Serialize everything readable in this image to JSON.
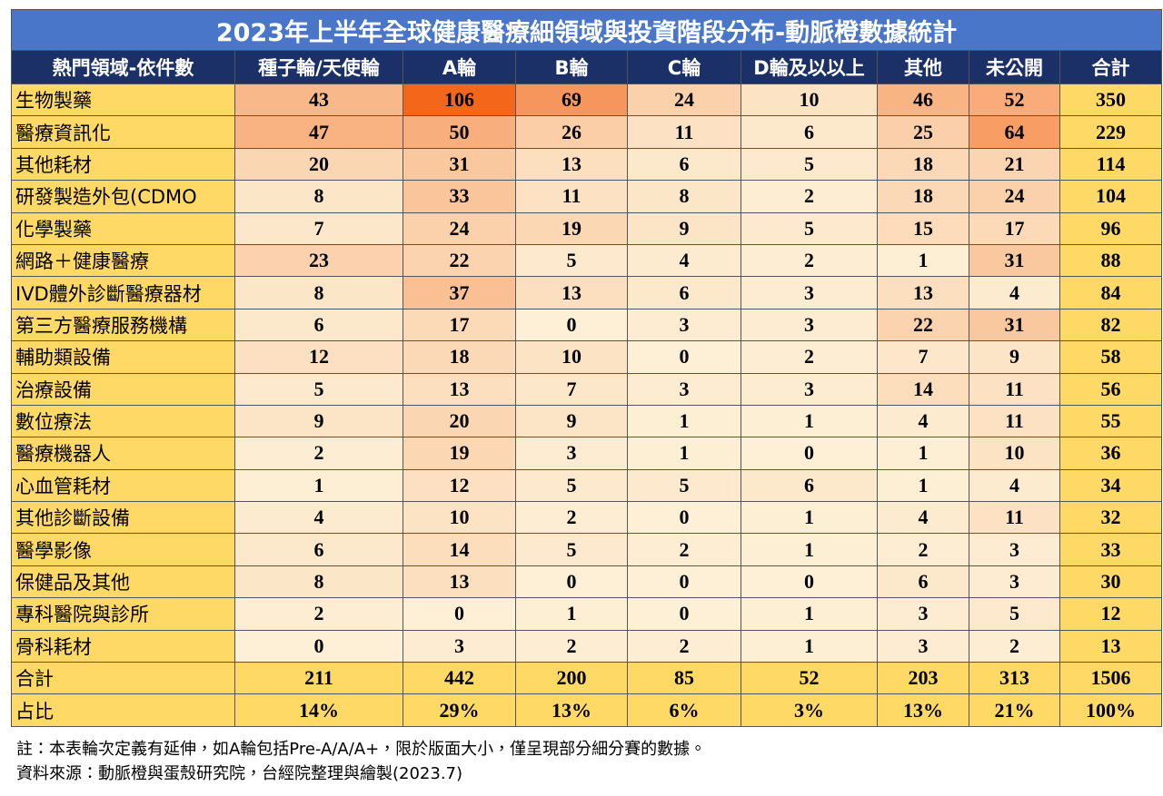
{
  "title": "2023年上半年全球健康醫療細領域與投資階段分布-動脈橙數據統計",
  "table": {
    "header": [
      "熱門領域-依件數",
      "種子輪/天使輪",
      "A輪",
      "B輪",
      "C輪",
      "D輪及以以上",
      "其他",
      "未公開",
      "合計"
    ],
    "rows": [
      [
        "生物製藥",
        43,
        106,
        69,
        24,
        10,
        46,
        52,
        350
      ],
      [
        "醫療資訊化",
        47,
        50,
        26,
        11,
        6,
        25,
        64,
        229
      ],
      [
        "其他耗材",
        20,
        31,
        13,
        6,
        5,
        18,
        21,
        114
      ],
      [
        "研發製造外包(CDMO",
        8,
        33,
        11,
        8,
        2,
        18,
        24,
        104
      ],
      [
        "化學製藥",
        7,
        24,
        19,
        9,
        5,
        15,
        17,
        96
      ],
      [
        "網路＋健康醫療",
        23,
        22,
        5,
        4,
        2,
        1,
        31,
        88
      ],
      [
        "IVD體外診斷醫療器材",
        8,
        37,
        13,
        6,
        3,
        13,
        4,
        84
      ],
      [
        "第三方醫療服務機構",
        6,
        17,
        0,
        3,
        3,
        22,
        31,
        82
      ],
      [
        "輔助類設備",
        12,
        18,
        10,
        0,
        2,
        7,
        9,
        58
      ],
      [
        "治療設備",
        5,
        13,
        7,
        3,
        3,
        14,
        11,
        56
      ],
      [
        "數位療法",
        9,
        20,
        9,
        1,
        1,
        4,
        11,
        55
      ],
      [
        "醫療機器人",
        2,
        19,
        3,
        1,
        0,
        1,
        10,
        36
      ],
      [
        "心血管耗材",
        1,
        12,
        5,
        5,
        6,
        1,
        4,
        34
      ],
      [
        "其他診斷設備",
        4,
        10,
        2,
        0,
        1,
        4,
        11,
        32
      ],
      [
        "醫學影像",
        6,
        14,
        5,
        2,
        1,
        2,
        3,
        33
      ],
      [
        "保健品及其他",
        8,
        13,
        0,
        0,
        0,
        6,
        3,
        30
      ],
      [
        "專科醫院與診所",
        2,
        0,
        1,
        0,
        1,
        3,
        5,
        12
      ],
      [
        "骨科耗材",
        0,
        3,
        2,
        2,
        1,
        3,
        2,
        13
      ]
    ],
    "summary_rows": [
      [
        "合計",
        211,
        442,
        200,
        85,
        52,
        203,
        313,
        1506
      ],
      [
        "占比",
        "14%",
        "29%",
        "13%",
        "6%",
        "3%",
        "13%",
        "21%",
        "100%"
      ]
    ]
  },
  "notes": [
    "註：本表輪次定義有延伸，如A輪包括Pre-A/A/A+，限於版面大小，僅呈現部分細分賽的數據。",
    "資料來源：動脈橙與蛋殼研究院，台經院整理與繪製(2023.7)"
  ]
}
